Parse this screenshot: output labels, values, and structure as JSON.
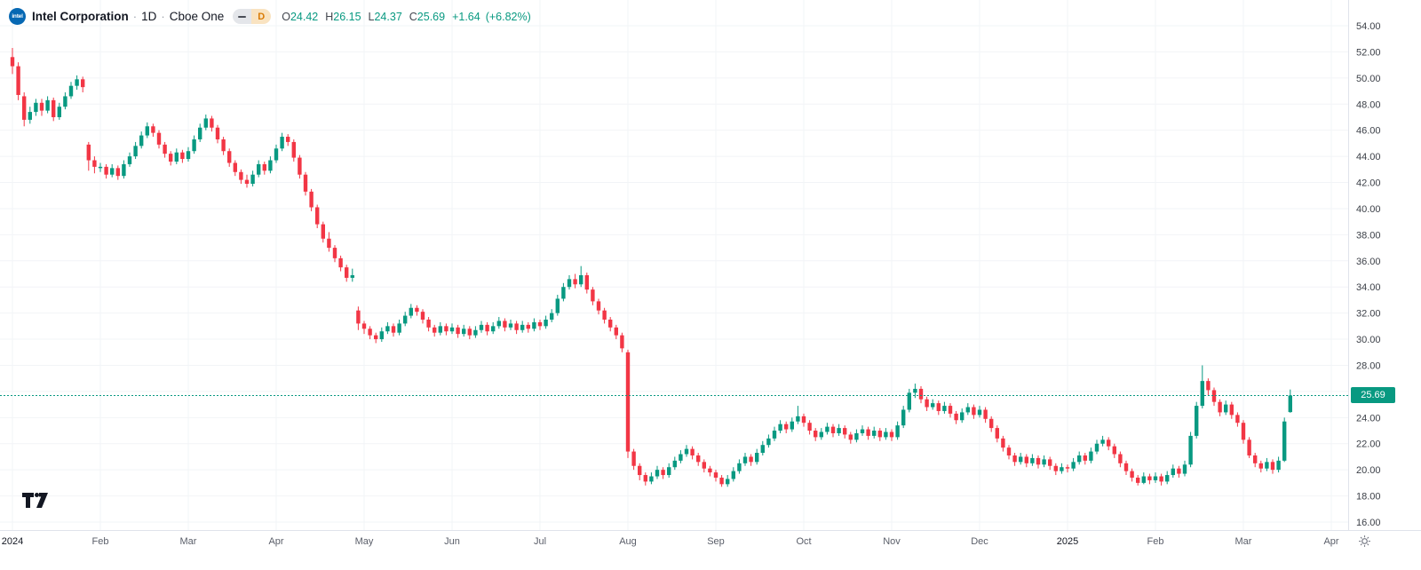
{
  "header": {
    "logo_text": "intel",
    "symbol_name": "Intel Corporation",
    "separator": "·",
    "interval": "1D",
    "exchange": "Cboe One",
    "interval_badge": "D",
    "ohlc": {
      "o_label": "O",
      "o_value": "24.42",
      "h_label": "H",
      "h_value": "26.15",
      "l_label": "L",
      "l_value": "24.37",
      "c_label": "C",
      "c_value": "25.69",
      "change": "+1.64",
      "change_pct": "(+6.82%)"
    }
  },
  "colors": {
    "up": "#089981",
    "down": "#F23645",
    "axis_text": "#3c4048",
    "month_text": "#5a5e69",
    "year_text": "#131722",
    "border": "#e0e3eb",
    "grid": "#f2f4f7",
    "badge_bg": "#f9e3c1",
    "badge_text": "#d97b06",
    "logo_bg": "#0668b3"
  },
  "chart_data": {
    "type": "candlestick",
    "title": "Intel Corporation · 1D · Cboe One",
    "ylim": [
      16,
      54
    ],
    "ytick_step": 2,
    "ytick_labels": [
      "54.00",
      "52.00",
      "50.00",
      "48.00",
      "46.00",
      "44.00",
      "42.00",
      "40.00",
      "38.00",
      "36.00",
      "34.00",
      "32.00",
      "30.00",
      "28.00",
      "26.00",
      "24.00",
      "22.00",
      "20.00",
      "18.00",
      "16.00"
    ],
    "x_labels": [
      {
        "text": "2024",
        "index": 0,
        "year": true
      },
      {
        "text": "Feb",
        "index": 15
      },
      {
        "text": "Mar",
        "index": 30
      },
      {
        "text": "Apr",
        "index": 45
      },
      {
        "text": "May",
        "index": 60
      },
      {
        "text": "Jun",
        "index": 75
      },
      {
        "text": "Jul",
        "index": 90
      },
      {
        "text": "Aug",
        "index": 105
      },
      {
        "text": "Sep",
        "index": 120
      },
      {
        "text": "Oct",
        "index": 135
      },
      {
        "text": "Nov",
        "index": 150
      },
      {
        "text": "Dec",
        "index": 165
      },
      {
        "text": "2025",
        "index": 180,
        "year": true
      },
      {
        "text": "Feb",
        "index": 195
      },
      {
        "text": "Mar",
        "index": 210
      },
      {
        "text": "Apr",
        "index": 225
      }
    ],
    "last_price": 25.69,
    "last_price_label": "25.69",
    "up_color": "#089981",
    "down_color": "#F23645",
    "candles": [
      [
        51.6,
        52.3,
        50.3,
        50.9
      ],
      [
        50.9,
        51.2,
        48.3,
        48.7
      ],
      [
        48.6,
        48.9,
        46.3,
        46.8
      ],
      [
        46.8,
        47.8,
        46.5,
        47.4
      ],
      [
        47.4,
        48.4,
        47.1,
        48.1
      ],
      [
        48.1,
        48.4,
        47.1,
        47.5
      ],
      [
        47.5,
        48.6,
        47.3,
        48.3
      ],
      [
        48.3,
        48.5,
        46.7,
        47.0
      ],
      [
        47.0,
        48.1,
        46.8,
        47.8
      ],
      [
        47.8,
        48.9,
        47.6,
        48.6
      ],
      [
        48.6,
        49.7,
        48.4,
        49.4
      ],
      [
        49.4,
        50.2,
        49.1,
        49.9
      ],
      [
        49.9,
        50.1,
        48.9,
        49.3
      ],
      [
        44.9,
        45.1,
        42.9,
        43.7
      ],
      [
        43.7,
        44.0,
        42.7,
        43.2
      ],
      [
        43.1,
        43.5,
        42.8,
        43.2
      ],
      [
        43.2,
        43.4,
        42.3,
        42.6
      ],
      [
        42.6,
        43.4,
        42.4,
        43.1
      ],
      [
        43.1,
        43.3,
        42.2,
        42.5
      ],
      [
        42.5,
        43.7,
        42.3,
        43.4
      ],
      [
        43.4,
        44.3,
        43.2,
        44.0
      ],
      [
        44.0,
        45.1,
        43.8,
        44.8
      ],
      [
        44.8,
        45.9,
        44.6,
        45.6
      ],
      [
        45.6,
        46.6,
        45.4,
        46.3
      ],
      [
        46.3,
        46.5,
        45.5,
        45.8
      ],
      [
        45.8,
        46.0,
        44.6,
        44.9
      ],
      [
        44.9,
        45.1,
        43.9,
        44.2
      ],
      [
        44.2,
        44.4,
        43.3,
        43.6
      ],
      [
        43.6,
        44.6,
        43.4,
        44.3
      ],
      [
        44.3,
        44.5,
        43.5,
        43.8
      ],
      [
        43.8,
        44.7,
        43.6,
        44.4
      ],
      [
        44.4,
        45.6,
        44.2,
        45.3
      ],
      [
        45.3,
        46.5,
        45.1,
        46.2
      ],
      [
        46.2,
        47.2,
        46.0,
        46.9
      ],
      [
        46.9,
        47.1,
        45.9,
        46.2
      ],
      [
        46.2,
        46.4,
        45.0,
        45.3
      ],
      [
        45.3,
        45.5,
        44.1,
        44.4
      ],
      [
        44.4,
        44.6,
        43.2,
        43.5
      ],
      [
        43.5,
        43.7,
        42.5,
        42.8
      ],
      [
        42.8,
        43.0,
        41.9,
        42.2
      ],
      [
        42.2,
        42.6,
        41.6,
        41.9
      ],
      [
        41.9,
        42.9,
        41.7,
        42.6
      ],
      [
        42.6,
        43.7,
        42.4,
        43.4
      ],
      [
        43.4,
        43.6,
        42.6,
        42.9
      ],
      [
        42.9,
        44.0,
        42.7,
        43.7
      ],
      [
        43.7,
        44.9,
        43.5,
        44.6
      ],
      [
        44.6,
        45.8,
        44.4,
        45.5
      ],
      [
        45.5,
        45.7,
        44.8,
        45.1
      ],
      [
        45.1,
        45.3,
        43.6,
        43.9
      ],
      [
        43.9,
        44.1,
        42.3,
        42.6
      ],
      [
        42.6,
        42.8,
        41.0,
        41.3
      ],
      [
        41.3,
        41.5,
        39.8,
        40.1
      ],
      [
        40.1,
        40.3,
        38.5,
        38.8
      ],
      [
        38.8,
        39.0,
        37.4,
        37.7
      ],
      [
        37.7,
        38.2,
        36.7,
        37.0
      ],
      [
        37.0,
        37.2,
        35.9,
        36.2
      ],
      [
        36.2,
        36.4,
        35.2,
        35.5
      ],
      [
        35.5,
        35.7,
        34.4,
        34.7
      ],
      [
        34.7,
        35.4,
        34.4,
        34.9
      ],
      [
        32.2,
        32.5,
        30.7,
        31.2
      ],
      [
        31.2,
        31.4,
        30.4,
        30.8
      ],
      [
        30.8,
        31.0,
        30.0,
        30.3
      ],
      [
        30.3,
        30.5,
        29.7,
        30.0
      ],
      [
        30.0,
        30.9,
        29.8,
        30.6
      ],
      [
        30.6,
        31.3,
        30.4,
        31.0
      ],
      [
        31.0,
        31.2,
        30.2,
        30.5
      ],
      [
        30.5,
        31.5,
        30.3,
        31.2
      ],
      [
        31.2,
        32.1,
        31.0,
        31.8
      ],
      [
        31.8,
        32.7,
        31.6,
        32.4
      ],
      [
        32.4,
        32.6,
        31.8,
        32.1
      ],
      [
        32.1,
        32.3,
        31.2,
        31.5
      ],
      [
        31.5,
        31.7,
        30.6,
        30.9
      ],
      [
        30.9,
        31.1,
        30.2,
        30.5
      ],
      [
        30.5,
        31.3,
        30.3,
        31.0
      ],
      [
        31.0,
        31.2,
        30.3,
        30.6
      ],
      [
        30.6,
        31.2,
        30.4,
        30.9
      ],
      [
        30.9,
        31.1,
        30.1,
        30.4
      ],
      [
        30.4,
        31.1,
        30.2,
        30.8
      ],
      [
        30.8,
        31.0,
        30.0,
        30.3
      ],
      [
        30.3,
        31.0,
        30.1,
        30.7
      ],
      [
        30.7,
        31.4,
        30.5,
        31.1
      ],
      [
        31.1,
        31.3,
        30.3,
        30.6
      ],
      [
        30.6,
        31.3,
        30.4,
        31.0
      ],
      [
        31.0,
        31.7,
        30.8,
        31.4
      ],
      [
        31.4,
        31.6,
        30.6,
        30.9
      ],
      [
        30.9,
        31.5,
        30.7,
        31.2
      ],
      [
        31.2,
        31.4,
        30.4,
        30.7
      ],
      [
        30.7,
        31.4,
        30.5,
        31.1
      ],
      [
        31.1,
        31.3,
        30.5,
        30.8
      ],
      [
        30.8,
        31.6,
        30.6,
        31.3
      ],
      [
        31.3,
        31.5,
        30.7,
        31.0
      ],
      [
        31.0,
        31.8,
        30.8,
        31.5
      ],
      [
        31.5,
        32.3,
        31.3,
        32.0
      ],
      [
        32.0,
        33.4,
        31.8,
        33.1
      ],
      [
        33.1,
        34.3,
        32.9,
        34.0
      ],
      [
        34.0,
        34.9,
        33.8,
        34.6
      ],
      [
        34.6,
        35.0,
        33.9,
        34.2
      ],
      [
        34.2,
        35.6,
        34.0,
        34.9
      ],
      [
        34.9,
        35.1,
        33.5,
        33.8
      ],
      [
        33.8,
        34.0,
        32.6,
        32.9
      ],
      [
        32.9,
        33.1,
        31.9,
        32.2
      ],
      [
        32.2,
        32.4,
        31.2,
        31.5
      ],
      [
        31.5,
        31.7,
        30.6,
        30.9
      ],
      [
        30.9,
        31.1,
        30.0,
        30.3
      ],
      [
        30.3,
        30.5,
        29.0,
        29.3
      ],
      [
        29.0,
        29.2,
        20.9,
        21.4
      ],
      [
        21.4,
        21.6,
        20.0,
        20.3
      ],
      [
        20.3,
        20.5,
        19.2,
        19.6
      ],
      [
        19.6,
        19.8,
        18.8,
        19.1
      ],
      [
        19.1,
        19.8,
        18.9,
        19.5
      ],
      [
        19.5,
        20.3,
        19.3,
        20.0
      ],
      [
        20.0,
        20.2,
        19.3,
        19.6
      ],
      [
        19.6,
        20.5,
        19.4,
        20.2
      ],
      [
        20.2,
        21.0,
        20.0,
        20.7
      ],
      [
        20.7,
        21.5,
        20.5,
        21.2
      ],
      [
        21.2,
        21.9,
        21.0,
        21.6
      ],
      [
        21.6,
        21.8,
        20.8,
        21.1
      ],
      [
        21.1,
        21.3,
        20.3,
        20.6
      ],
      [
        20.6,
        20.8,
        19.8,
        20.1
      ],
      [
        20.1,
        20.3,
        19.5,
        19.8
      ],
      [
        19.8,
        20.0,
        19.1,
        19.4
      ],
      [
        19.4,
        19.6,
        18.7,
        18.9
      ],
      [
        18.9,
        19.6,
        18.7,
        19.3
      ],
      [
        19.3,
        20.2,
        19.1,
        19.9
      ],
      [
        19.9,
        20.8,
        19.7,
        20.5
      ],
      [
        20.5,
        21.3,
        20.3,
        21.0
      ],
      [
        21.0,
        21.2,
        20.3,
        20.6
      ],
      [
        20.6,
        21.6,
        20.4,
        21.3
      ],
      [
        21.3,
        22.2,
        21.1,
        21.9
      ],
      [
        21.9,
        22.7,
        21.7,
        22.4
      ],
      [
        22.4,
        23.3,
        22.2,
        23.0
      ],
      [
        23.0,
        23.8,
        22.8,
        23.5
      ],
      [
        23.5,
        23.7,
        22.8,
        23.1
      ],
      [
        23.1,
        24.0,
        22.9,
        23.7
      ],
      [
        23.7,
        24.9,
        23.5,
        24.1
      ],
      [
        24.1,
        24.3,
        23.3,
        23.6
      ],
      [
        23.6,
        23.8,
        22.7,
        23.0
      ],
      [
        23.0,
        23.2,
        22.2,
        22.5
      ],
      [
        22.5,
        23.2,
        22.3,
        22.9
      ],
      [
        22.9,
        23.6,
        22.7,
        23.3
      ],
      [
        23.3,
        23.5,
        22.5,
        22.8
      ],
      [
        22.8,
        23.5,
        22.6,
        23.2
      ],
      [
        23.2,
        23.4,
        22.4,
        22.7
      ],
      [
        22.7,
        22.9,
        22.0,
        22.3
      ],
      [
        22.3,
        23.1,
        22.1,
        22.8
      ],
      [
        22.8,
        23.4,
        22.6,
        23.1
      ],
      [
        23.1,
        23.3,
        22.3,
        22.6
      ],
      [
        22.6,
        23.3,
        22.4,
        23.0
      ],
      [
        23.0,
        23.2,
        22.2,
        22.5
      ],
      [
        22.5,
        23.2,
        22.3,
        22.9
      ],
      [
        22.9,
        23.1,
        22.2,
        22.5
      ],
      [
        22.5,
        23.7,
        22.3,
        23.4
      ],
      [
        23.4,
        24.9,
        23.2,
        24.6
      ],
      [
        24.6,
        26.2,
        24.4,
        25.9
      ],
      [
        25.9,
        26.6,
        25.5,
        26.2
      ],
      [
        26.2,
        26.4,
        25.1,
        25.4
      ],
      [
        25.4,
        25.6,
        24.5,
        24.8
      ],
      [
        24.8,
        25.4,
        24.6,
        25.1
      ],
      [
        25.1,
        25.3,
        24.2,
        24.5
      ],
      [
        24.5,
        25.2,
        24.3,
        24.9
      ],
      [
        24.9,
        25.1,
        24.0,
        24.3
      ],
      [
        24.3,
        24.5,
        23.5,
        23.8
      ],
      [
        23.8,
        24.7,
        23.6,
        24.4
      ],
      [
        24.4,
        25.1,
        24.2,
        24.8
      ],
      [
        24.8,
        25.0,
        23.9,
        24.2
      ],
      [
        24.2,
        24.9,
        24.0,
        24.6
      ],
      [
        24.6,
        24.8,
        23.6,
        23.9
      ],
      [
        23.9,
        24.1,
        22.9,
        23.2
      ],
      [
        23.2,
        23.4,
        22.1,
        22.4
      ],
      [
        22.4,
        22.6,
        21.4,
        21.7
      ],
      [
        21.7,
        21.9,
        20.8,
        21.1
      ],
      [
        21.1,
        21.3,
        20.3,
        20.6
      ],
      [
        20.6,
        21.3,
        20.4,
        21.0
      ],
      [
        21.0,
        21.2,
        20.2,
        20.5
      ],
      [
        20.5,
        21.2,
        20.3,
        20.9
      ],
      [
        20.9,
        21.1,
        20.1,
        20.4
      ],
      [
        20.4,
        21.1,
        20.2,
        20.8
      ],
      [
        20.8,
        21.0,
        20.0,
        20.3
      ],
      [
        20.3,
        20.5,
        19.6,
        19.9
      ],
      [
        19.9,
        20.5,
        19.7,
        20.2
      ],
      [
        20.2,
        20.4,
        19.8,
        20.1
      ],
      [
        20.1,
        20.9,
        19.9,
        20.6
      ],
      [
        20.6,
        21.4,
        20.4,
        21.1
      ],
      [
        21.1,
        21.3,
        20.4,
        20.7
      ],
      [
        20.7,
        21.7,
        20.5,
        21.4
      ],
      [
        21.4,
        22.3,
        21.2,
        22.0
      ],
      [
        22.0,
        22.6,
        21.8,
        22.3
      ],
      [
        22.3,
        22.5,
        21.5,
        21.8
      ],
      [
        21.8,
        22.0,
        20.9,
        21.2
      ],
      [
        21.2,
        21.4,
        20.2,
        20.5
      ],
      [
        20.5,
        20.7,
        19.6,
        19.9
      ],
      [
        19.9,
        20.1,
        19.1,
        19.4
      ],
      [
        19.4,
        19.6,
        18.8,
        19.0
      ],
      [
        19.0,
        19.8,
        18.9,
        19.5
      ],
      [
        19.5,
        19.7,
        18.9,
        19.2
      ],
      [
        19.2,
        19.8,
        19.0,
        19.5
      ],
      [
        19.5,
        19.7,
        18.8,
        19.1
      ],
      [
        19.1,
        19.9,
        18.9,
        19.6
      ],
      [
        19.6,
        20.4,
        19.4,
        20.1
      ],
      [
        20.1,
        20.3,
        19.4,
        19.7
      ],
      [
        19.7,
        20.7,
        19.5,
        20.4
      ],
      [
        20.4,
        22.9,
        20.2,
        22.6
      ],
      [
        22.6,
        25.2,
        22.4,
        24.9
      ],
      [
        24.9,
        28.0,
        24.7,
        26.8
      ],
      [
        26.8,
        27.0,
        25.7,
        26.1
      ],
      [
        26.1,
        26.3,
        24.9,
        25.2
      ],
      [
        25.2,
        25.4,
        24.1,
        24.4
      ],
      [
        24.4,
        25.3,
        24.2,
        25.0
      ],
      [
        25.0,
        25.2,
        23.9,
        24.2
      ],
      [
        24.2,
        24.4,
        23.3,
        23.6
      ],
      [
        23.6,
        23.8,
        22.0,
        22.3
      ],
      [
        22.3,
        22.5,
        20.9,
        21.1
      ],
      [
        21.1,
        21.3,
        20.2,
        20.5
      ],
      [
        20.5,
        20.7,
        19.8,
        20.1
      ],
      [
        20.1,
        20.9,
        19.9,
        20.6
      ],
      [
        20.6,
        20.8,
        19.7,
        20.0
      ],
      [
        20.0,
        21.0,
        19.8,
        20.7
      ],
      [
        20.7,
        24.0,
        20.6,
        23.7
      ],
      [
        24.42,
        26.15,
        24.37,
        25.69
      ]
    ]
  }
}
